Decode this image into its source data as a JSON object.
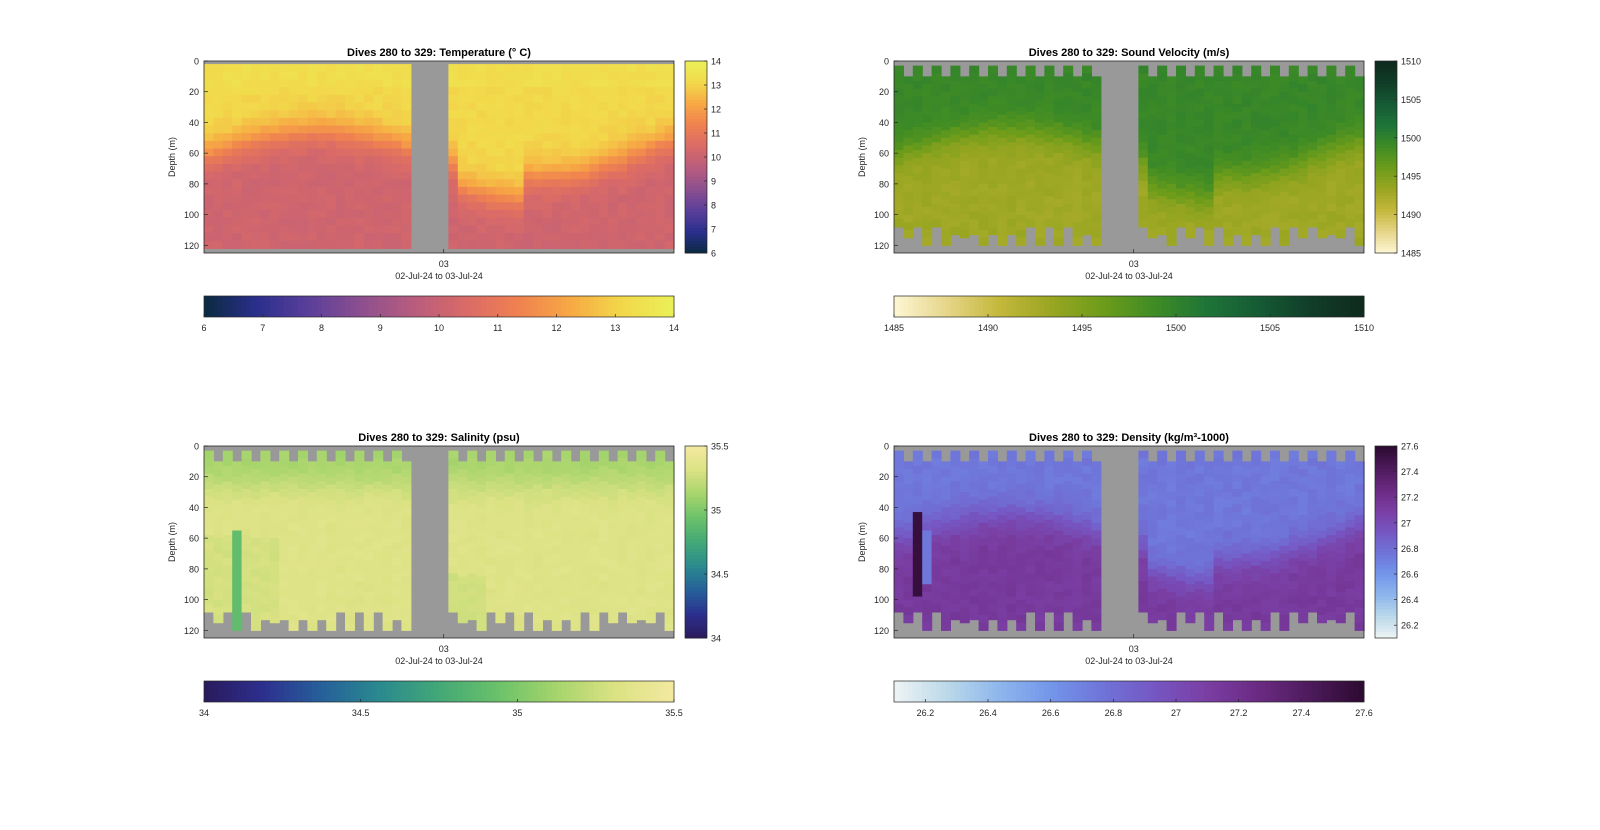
{
  "figure": {
    "background": "#ffffff",
    "nodata_color": "#999999",
    "shared_xlabel": "02-Jul-24 to 03-Jul-24",
    "shared_xtick": "03",
    "shared_ylabel": "Depth (m)"
  },
  "chart_data": [
    {
      "type": "heatmap",
      "title": "Dives 280 to 329: Temperature (° C)",
      "xlabel": "02-Jul-24 to 03-Jul-24",
      "ylabel": "Depth (m)",
      "x_ticks": [
        "03"
      ],
      "y_ticks": [
        "0",
        "20",
        "40",
        "60",
        "80",
        "100",
        "120"
      ],
      "ylim": [
        0,
        125
      ],
      "y_reversed": true,
      "colorbar_range": [
        6,
        14
      ],
      "colorbar_ticks_right": [
        "14",
        "13",
        "12",
        "11",
        "10",
        "9",
        "8",
        "7",
        "6"
      ],
      "colorbar_ticks_bottom": [
        "6",
        "7",
        "8",
        "9",
        "10",
        "11",
        "12",
        "13",
        "14"
      ],
      "colormap": [
        "#0b2a40",
        "#2a2f8c",
        "#5a3f9a",
        "#8c4f8f",
        "#b85c7e",
        "#d96a67",
        "#ef8150",
        "#f7a844",
        "#f2d84a",
        "#eaf058"
      ],
      "data_gap": "dives ~302 to 306 (grey)",
      "surface_value": 13.2,
      "deep_value": 10.3,
      "thermocline_depth_m": [
        55,
        50,
        45,
        45,
        50,
        55,
        60,
        75,
        75,
        70,
        60,
        55,
        55,
        55,
        50,
        45,
        40,
        40,
        35,
        30
      ],
      "max_dive_depth_m": 120
    },
    {
      "type": "heatmap",
      "title": "Dives 280 to 329: Sound Velocity (m/s)",
      "xlabel": "02-Jul-24 to 03-Jul-24",
      "ylabel": "Depth (m)",
      "x_ticks": [
        "03"
      ],
      "y_ticks": [
        "0",
        "20",
        "40",
        "60",
        "80",
        "100",
        "120"
      ],
      "ylim": [
        0,
        125
      ],
      "y_reversed": true,
      "colorbar_range": [
        1485,
        1510
      ],
      "colorbar_ticks_right": [
        "1510",
        "1505",
        "1500",
        "1495",
        "1490",
        "1485"
      ],
      "colorbar_ticks_bottom": [
        "1485",
        "1490",
        "1495",
        "1500",
        "1505",
        "1510"
      ],
      "colormap": [
        "#fdf6d4",
        "#e6d68a",
        "#c5b83c",
        "#9aa622",
        "#6c9c1a",
        "#3f8c25",
        "#1e7438",
        "#155a34",
        "#113d28",
        "#0f2a1e"
      ],
      "data_gap": "dives ~302 to 306 (grey)",
      "surface_value": 1499.5,
      "deep_value": 1493,
      "max_dive_depth_m": 108
    },
    {
      "type": "heatmap",
      "title": "Dives 280 to 329: Salinity (psu)",
      "xlabel": "02-Jul-24 to 03-Jul-24",
      "ylabel": "Depth (m)",
      "x_ticks": [
        "03"
      ],
      "y_ticks": [
        "0",
        "20",
        "40",
        "60",
        "80",
        "100",
        "120"
      ],
      "ylim": [
        0,
        125
      ],
      "y_reversed": true,
      "colorbar_range": [
        34,
        35.5
      ],
      "colorbar_ticks_right": [
        "35.5",
        "35",
        "34.5",
        "34"
      ],
      "colorbar_ticks_bottom": [
        "34",
        "34.5",
        "35",
        "35.5"
      ],
      "colormap": [
        "#2b1a5c",
        "#2c2f8e",
        "#26609a",
        "#2a8a8e",
        "#43a877",
        "#6ac16a",
        "#a6d46c",
        "#dbe283",
        "#f3e9a0"
      ],
      "data_gap": "dives ~302 to 306 (grey)",
      "surface_value": 35.15,
      "deep_value": 35.35,
      "max_dive_depth_m": 108
    },
    {
      "type": "heatmap",
      "title": "Dives 280 to 329: Density (kg/m³-1000)",
      "xlabel": "02-Jul-24 to 03-Jul-24",
      "ylabel": "Depth (m)",
      "x_ticks": [
        "03"
      ],
      "y_ticks": [
        "0",
        "20",
        "40",
        "60",
        "80",
        "100",
        "120"
      ],
      "ylim": [
        0,
        125
      ],
      "y_reversed": true,
      "colorbar_range": [
        26.1,
        27.6
      ],
      "colorbar_ticks_right": [
        "27.6",
        "27.4",
        "27.2",
        "27",
        "26.8",
        "26.6",
        "26.4",
        "26.2"
      ],
      "colorbar_ticks_bottom": [
        "26.2",
        "26.4",
        "26.6",
        "26.8",
        "27",
        "27.2",
        "27.4",
        "27.6"
      ],
      "colormap": [
        "#eef4f4",
        "#bcd9ea",
        "#8fb7ec",
        "#7396ea",
        "#6f74d8",
        "#7656c2",
        "#7a3ea3",
        "#6a2a82",
        "#4c1a5a",
        "#2c0a30"
      ],
      "data_gap": "dives ~302 to 306 (grey)",
      "surface_value": 26.75,
      "deep_value": 27.1,
      "max_dive_depth_m": 108
    }
  ]
}
